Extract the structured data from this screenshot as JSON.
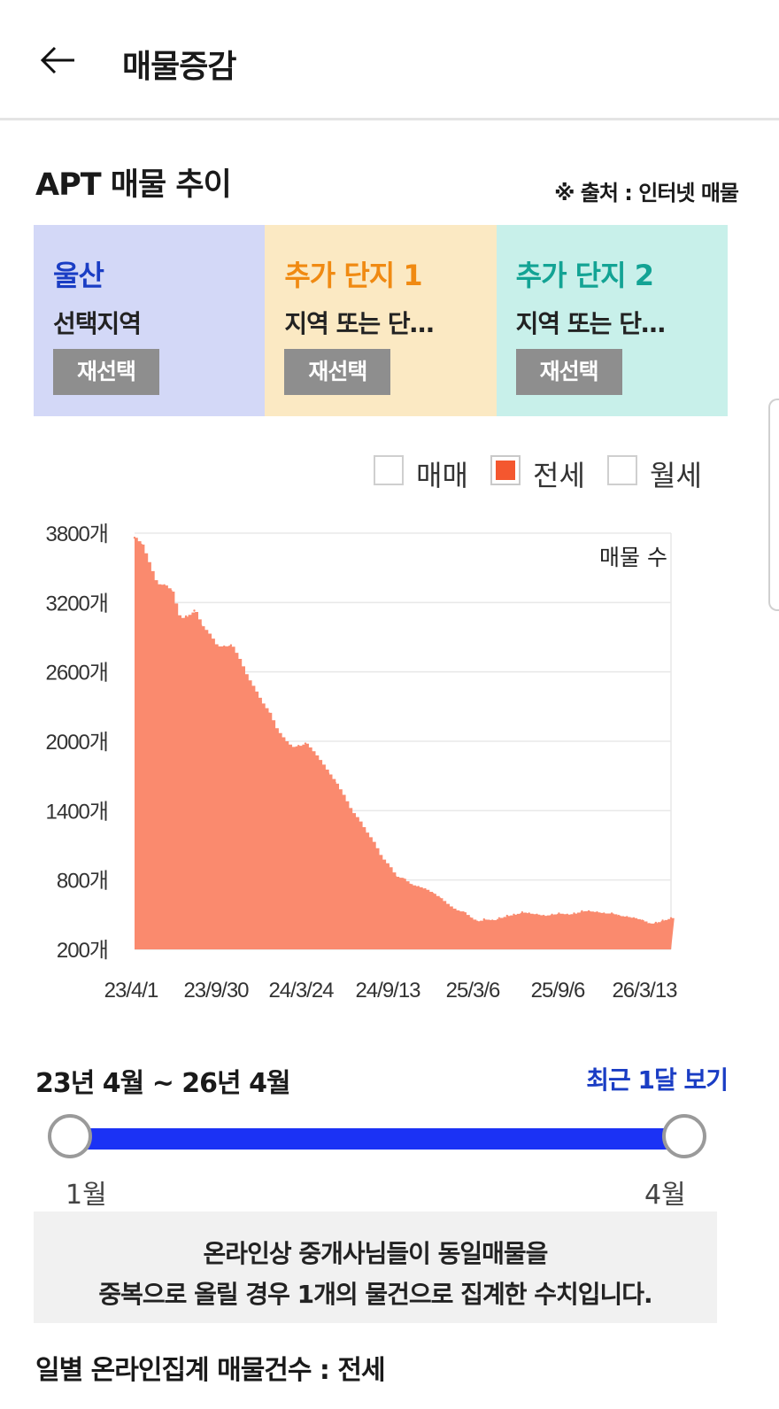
{
  "header": {
    "title": "매물증감",
    "back_icon": "back-arrow-icon"
  },
  "section": {
    "title": "APT 매물 추이",
    "source": "※ 출처 : 인터넷 매물"
  },
  "regions": [
    {
      "name": "울산",
      "sub": "선택지역",
      "button": "재선택",
      "bg": "#d3d8f7",
      "color": "#1a3dc4"
    },
    {
      "name": "추가 단지 1",
      "sub": "지역 또는 단…",
      "button": "재선택",
      "bg": "#fbe9c3",
      "color": "#f08a12"
    },
    {
      "name": "추가 단지 2",
      "sub": "지역 또는 단…",
      "button": "재선택",
      "bg": "#c8f0ea",
      "color": "#13a394"
    }
  ],
  "legend": [
    {
      "label": "매매",
      "checked": false
    },
    {
      "label": "전세",
      "checked": true
    },
    {
      "label": "월세",
      "checked": false
    }
  ],
  "chart_data": {
    "type": "area",
    "annotation": "매물 수",
    "y_ticks": [
      "3800개",
      "3200개",
      "2600개",
      "2000개",
      "1400개",
      "800개",
      "200개"
    ],
    "ylim": [
      200,
      3800
    ],
    "x_ticks": [
      "23/4/1",
      "23/9/30",
      "24/3/24",
      "24/9/13",
      "25/3/6",
      "25/9/6",
      "26/3/13"
    ],
    "series": [
      {
        "color": "#fa8a6e",
        "points": [
          [
            "2023-04-01",
            3760
          ],
          [
            "2023-04-15",
            3700
          ],
          [
            "2023-05-01",
            3520
          ],
          [
            "2023-05-15",
            3360
          ],
          [
            "2023-06-01",
            3350
          ],
          [
            "2023-06-15",
            3300
          ],
          [
            "2023-07-01",
            3060
          ],
          [
            "2023-07-15",
            3080
          ],
          [
            "2023-08-01",
            3130
          ],
          [
            "2023-08-15",
            3000
          ],
          [
            "2023-09-01",
            2920
          ],
          [
            "2023-09-15",
            2820
          ],
          [
            "2023-10-01",
            2820
          ],
          [
            "2023-10-15",
            2830
          ],
          [
            "2023-11-01",
            2700
          ],
          [
            "2023-11-15",
            2560
          ],
          [
            "2023-12-01",
            2450
          ],
          [
            "2023-12-15",
            2340
          ],
          [
            "2024-01-01",
            2240
          ],
          [
            "2024-01-15",
            2100
          ],
          [
            "2024-02-01",
            2010
          ],
          [
            "2024-02-15",
            1950
          ],
          [
            "2024-03-01",
            1960
          ],
          [
            "2024-03-15",
            1980
          ],
          [
            "2024-04-01",
            1900
          ],
          [
            "2024-04-15",
            1820
          ],
          [
            "2024-05-01",
            1720
          ],
          [
            "2024-05-15",
            1640
          ],
          [
            "2024-06-01",
            1520
          ],
          [
            "2024-06-15",
            1400
          ],
          [
            "2024-07-01",
            1320
          ],
          [
            "2024-07-15",
            1220
          ],
          [
            "2024-08-01",
            1120
          ],
          [
            "2024-08-15",
            1000
          ],
          [
            "2024-09-01",
            920
          ],
          [
            "2024-09-15",
            830
          ],
          [
            "2024-10-01",
            810
          ],
          [
            "2024-10-15",
            760
          ],
          [
            "2024-11-01",
            740
          ],
          [
            "2024-11-15",
            720
          ],
          [
            "2024-12-01",
            680
          ],
          [
            "2024-12-15",
            640
          ],
          [
            "2025-01-01",
            580
          ],
          [
            "2025-01-15",
            540
          ],
          [
            "2025-02-01",
            520
          ],
          [
            "2025-02-15",
            470
          ],
          [
            "2025-03-01",
            440
          ],
          [
            "2025-03-15",
            460
          ],
          [
            "2025-04-01",
            450
          ],
          [
            "2025-04-15",
            470
          ],
          [
            "2025-05-01",
            490
          ],
          [
            "2025-05-15",
            500
          ],
          [
            "2025-06-01",
            520
          ],
          [
            "2025-06-15",
            510
          ],
          [
            "2025-07-01",
            500
          ],
          [
            "2025-07-15",
            490
          ],
          [
            "2025-08-01",
            500
          ],
          [
            "2025-08-15",
            510
          ],
          [
            "2025-09-01",
            500
          ],
          [
            "2025-09-15",
            510
          ],
          [
            "2025-10-01",
            530
          ],
          [
            "2025-10-15",
            530
          ],
          [
            "2025-11-01",
            520
          ],
          [
            "2025-11-15",
            510
          ],
          [
            "2025-12-01",
            510
          ],
          [
            "2025-12-15",
            490
          ],
          [
            "2026-01-01",
            480
          ],
          [
            "2026-01-15",
            470
          ],
          [
            "2026-02-01",
            450
          ],
          [
            "2026-02-15",
            420
          ],
          [
            "2026-03-01",
            430
          ],
          [
            "2026-03-15",
            450
          ],
          [
            "2026-04-01",
            470
          ]
        ]
      }
    ]
  },
  "range": {
    "label": "23년 4월 ~ 26년 4월",
    "recent_link": "최근 1달 보기",
    "min_label": "1월",
    "max_label": "4월"
  },
  "notice": {
    "line1": "온라인상 중개사님들이 동일매물을",
    "line2": "중복으로 올릴 경우 1개의 물건으로 집계한 수치입니다."
  },
  "daily_title": "일별 온라인집계 매물건수 : 전세"
}
